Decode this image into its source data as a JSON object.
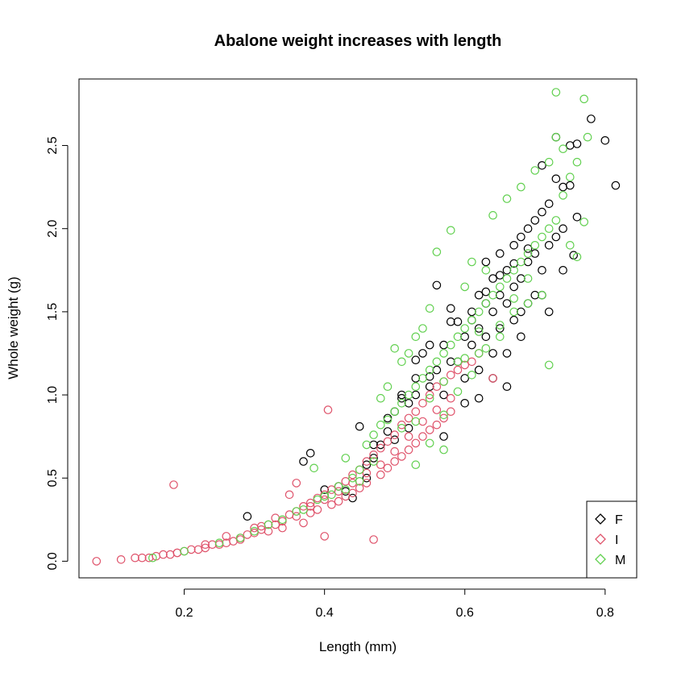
{
  "chart_data": {
    "type": "scatter",
    "title": "Abalone weight increases with length",
    "xlabel": "Length (mm)",
    "ylabel": "Whole weight (g)",
    "xlim": [
      0.05,
      0.845
    ],
    "ylim": [
      -0.1,
      2.9
    ],
    "x_ticks": [
      0.2,
      0.4,
      0.6,
      0.8
    ],
    "x_tick_labels": [
      "0.2",
      "0.4",
      "0.6",
      "0.8"
    ],
    "y_ticks": [
      0.0,
      0.5,
      1.0,
      1.5,
      2.0,
      2.5
    ],
    "y_tick_labels": [
      "0.0",
      "0.5",
      "1.0",
      "1.5",
      "2.0",
      "2.5"
    ],
    "grid": false,
    "legend_position": "bottom-right",
    "marker": "open-circle",
    "legend_marker": "open-diamond",
    "series": [
      {
        "name": "F",
        "color": "#000000",
        "points": [
          [
            0.29,
            0.27
          ],
          [
            0.37,
            0.6
          ],
          [
            0.38,
            0.65
          ],
          [
            0.4,
            0.43
          ],
          [
            0.42,
            0.45
          ],
          [
            0.45,
            0.81
          ],
          [
            0.46,
            0.58
          ],
          [
            0.47,
            0.62
          ],
          [
            0.48,
            0.7
          ],
          [
            0.49,
            0.78
          ],
          [
            0.5,
            0.73
          ],
          [
            0.5,
            0.9
          ],
          [
            0.51,
            1.0
          ],
          [
            0.52,
            0.95
          ],
          [
            0.53,
            1.1
          ],
          [
            0.53,
            1.21
          ],
          [
            0.54,
            1.25
          ],
          [
            0.55,
            1.3
          ],
          [
            0.55,
            1.05
          ],
          [
            0.56,
            1.66
          ],
          [
            0.56,
            1.15
          ],
          [
            0.57,
            1.3
          ],
          [
            0.57,
            1.0
          ],
          [
            0.58,
            1.44
          ],
          [
            0.58,
            1.52
          ],
          [
            0.59,
            1.44
          ],
          [
            0.59,
            1.2
          ],
          [
            0.6,
            1.35
          ],
          [
            0.6,
            1.1
          ],
          [
            0.61,
            1.5
          ],
          [
            0.61,
            1.3
          ],
          [
            0.62,
            1.6
          ],
          [
            0.62,
            1.4
          ],
          [
            0.62,
            1.15
          ],
          [
            0.63,
            1.8
          ],
          [
            0.63,
            1.55
          ],
          [
            0.63,
            1.35
          ],
          [
            0.64,
            1.7
          ],
          [
            0.64,
            1.5
          ],
          [
            0.64,
            1.25
          ],
          [
            0.65,
            1.85
          ],
          [
            0.65,
            1.6
          ],
          [
            0.65,
            1.4
          ],
          [
            0.66,
            1.75
          ],
          [
            0.66,
            1.55
          ],
          [
            0.66,
            1.05
          ],
          [
            0.67,
            1.9
          ],
          [
            0.67,
            1.65
          ],
          [
            0.67,
            1.45
          ],
          [
            0.68,
            1.95
          ],
          [
            0.68,
            1.7
          ],
          [
            0.68,
            1.5
          ],
          [
            0.69,
            2.0
          ],
          [
            0.69,
            1.8
          ],
          [
            0.69,
            1.55
          ],
          [
            0.7,
            2.05
          ],
          [
            0.7,
            1.85
          ],
          [
            0.7,
            1.6
          ],
          [
            0.71,
            2.38
          ],
          [
            0.71,
            2.1
          ],
          [
            0.71,
            1.75
          ],
          [
            0.72,
            2.15
          ],
          [
            0.72,
            1.9
          ],
          [
            0.72,
            1.5
          ],
          [
            0.73,
            2.55
          ],
          [
            0.73,
            2.3
          ],
          [
            0.73,
            1.95
          ],
          [
            0.74,
            2.25
          ],
          [
            0.74,
            2.0
          ],
          [
            0.75,
            2.5
          ],
          [
            0.75,
            2.26
          ],
          [
            0.76,
            2.51
          ],
          [
            0.76,
            2.07
          ],
          [
            0.78,
            2.66
          ],
          [
            0.8,
            2.53
          ],
          [
            0.815,
            2.26
          ],
          [
            0.44,
            0.38
          ],
          [
            0.46,
            0.5
          ],
          [
            0.52,
            0.8
          ],
          [
            0.57,
            0.75
          ],
          [
            0.6,
            0.95
          ],
          [
            0.62,
            0.98
          ],
          [
            0.64,
            1.1
          ],
          [
            0.66,
            1.25
          ],
          [
            0.68,
            1.35
          ],
          [
            0.71,
            1.6
          ],
          [
            0.74,
            1.75
          ],
          [
            0.755,
            1.84
          ],
          [
            0.43,
            0.42
          ],
          [
            0.47,
            0.7
          ],
          [
            0.49,
            0.86
          ],
          [
            0.51,
            0.98
          ],
          [
            0.53,
            1.0
          ],
          [
            0.55,
            1.11
          ],
          [
            0.58,
            1.2
          ],
          [
            0.61,
            1.45
          ],
          [
            0.63,
            1.62
          ],
          [
            0.65,
            1.72
          ],
          [
            0.67,
            1.79
          ],
          [
            0.69,
            1.88
          ]
        ]
      },
      {
        "name": "I",
        "color": "#DF536B",
        "points": [
          [
            0.075,
            0.0
          ],
          [
            0.11,
            0.01
          ],
          [
            0.13,
            0.02
          ],
          [
            0.14,
            0.02
          ],
          [
            0.15,
            0.02
          ],
          [
            0.16,
            0.03
          ],
          [
            0.17,
            0.04
          ],
          [
            0.18,
            0.04
          ],
          [
            0.185,
            0.46
          ],
          [
            0.19,
            0.05
          ],
          [
            0.2,
            0.06
          ],
          [
            0.21,
            0.07
          ],
          [
            0.22,
            0.07
          ],
          [
            0.23,
            0.08
          ],
          [
            0.24,
            0.1
          ],
          [
            0.25,
            0.1
          ],
          [
            0.26,
            0.15
          ],
          [
            0.27,
            0.12
          ],
          [
            0.28,
            0.14
          ],
          [
            0.29,
            0.16
          ],
          [
            0.3,
            0.17
          ],
          [
            0.3,
            0.2
          ],
          [
            0.31,
            0.21
          ],
          [
            0.32,
            0.22
          ],
          [
            0.32,
            0.18
          ],
          [
            0.33,
            0.26
          ],
          [
            0.34,
            0.24
          ],
          [
            0.34,
            0.2
          ],
          [
            0.35,
            0.28
          ],
          [
            0.35,
            0.4
          ],
          [
            0.36,
            0.3
          ],
          [
            0.36,
            0.47
          ],
          [
            0.37,
            0.33
          ],
          [
            0.37,
            0.23
          ],
          [
            0.38,
            0.35
          ],
          [
            0.38,
            0.29
          ],
          [
            0.39,
            0.38
          ],
          [
            0.39,
            0.31
          ],
          [
            0.4,
            0.4
          ],
          [
            0.4,
            0.15
          ],
          [
            0.405,
            0.91
          ],
          [
            0.41,
            0.43
          ],
          [
            0.41,
            0.34
          ],
          [
            0.42,
            0.45
          ],
          [
            0.42,
            0.36
          ],
          [
            0.43,
            0.48
          ],
          [
            0.43,
            0.39
          ],
          [
            0.44,
            0.52
          ],
          [
            0.44,
            0.41
          ],
          [
            0.45,
            0.55
          ],
          [
            0.45,
            0.44
          ],
          [
            0.46,
            0.6
          ],
          [
            0.46,
            0.47
          ],
          [
            0.47,
            0.64
          ],
          [
            0.47,
            0.13
          ],
          [
            0.48,
            0.68
          ],
          [
            0.48,
            0.52
          ],
          [
            0.49,
            0.72
          ],
          [
            0.49,
            0.56
          ],
          [
            0.5,
            0.76
          ],
          [
            0.5,
            0.6
          ],
          [
            0.51,
            0.82
          ],
          [
            0.51,
            0.63
          ],
          [
            0.52,
            0.86
          ],
          [
            0.52,
            0.67
          ],
          [
            0.53,
            0.9
          ],
          [
            0.53,
            0.71
          ],
          [
            0.54,
            0.95
          ],
          [
            0.54,
            0.75
          ],
          [
            0.55,
            1.0
          ],
          [
            0.55,
            0.79
          ],
          [
            0.56,
            1.05
          ],
          [
            0.56,
            0.82
          ],
          [
            0.57,
            1.08
          ],
          [
            0.57,
            0.86
          ],
          [
            0.58,
            1.12
          ],
          [
            0.58,
            0.9
          ],
          [
            0.59,
            1.15
          ],
          [
            0.6,
            1.18
          ],
          [
            0.61,
            1.2
          ],
          [
            0.62,
            1.25
          ],
          [
            0.64,
            1.1
          ],
          [
            0.19,
            0.05
          ],
          [
            0.23,
            0.1
          ],
          [
            0.26,
            0.11
          ],
          [
            0.28,
            0.13
          ],
          [
            0.31,
            0.19
          ],
          [
            0.33,
            0.22
          ],
          [
            0.36,
            0.27
          ],
          [
            0.38,
            0.33
          ],
          [
            0.4,
            0.37
          ],
          [
            0.42,
            0.42
          ],
          [
            0.44,
            0.47
          ],
          [
            0.46,
            0.53
          ],
          [
            0.48,
            0.58
          ],
          [
            0.5,
            0.66
          ],
          [
            0.52,
            0.75
          ],
          [
            0.54,
            0.84
          ],
          [
            0.56,
            0.91
          ],
          [
            0.58,
            0.98
          ]
        ]
      },
      {
        "name": "M",
        "color": "#61D04F",
        "points": [
          [
            0.155,
            0.02
          ],
          [
            0.2,
            0.06
          ],
          [
            0.25,
            0.11
          ],
          [
            0.28,
            0.14
          ],
          [
            0.3,
            0.18
          ],
          [
            0.32,
            0.22
          ],
          [
            0.34,
            0.25
          ],
          [
            0.36,
            0.3
          ],
          [
            0.37,
            0.31
          ],
          [
            0.385,
            0.56
          ],
          [
            0.39,
            0.37
          ],
          [
            0.4,
            0.39
          ],
          [
            0.42,
            0.45
          ],
          [
            0.43,
            0.62
          ],
          [
            0.44,
            0.5
          ],
          [
            0.45,
            0.55
          ],
          [
            0.46,
            0.7
          ],
          [
            0.47,
            0.76
          ],
          [
            0.48,
            0.82
          ],
          [
            0.48,
            0.98
          ],
          [
            0.49,
            0.85
          ],
          [
            0.49,
            1.05
          ],
          [
            0.5,
            0.9
          ],
          [
            0.5,
            1.28
          ],
          [
            0.51,
            0.95
          ],
          [
            0.51,
            1.2
          ],
          [
            0.52,
            1.0
          ],
          [
            0.52,
            1.25
          ],
          [
            0.53,
            1.05
          ],
          [
            0.53,
            1.35
          ],
          [
            0.54,
            1.1
          ],
          [
            0.54,
            1.4
          ],
          [
            0.55,
            1.15
          ],
          [
            0.55,
            1.52
          ],
          [
            0.56,
            1.2
          ],
          [
            0.56,
            1.86
          ],
          [
            0.57,
            1.25
          ],
          [
            0.57,
            0.67
          ],
          [
            0.58,
            1.3
          ],
          [
            0.58,
            1.99
          ],
          [
            0.59,
            1.35
          ],
          [
            0.59,
            1.2
          ],
          [
            0.6,
            1.4
          ],
          [
            0.6,
            1.65
          ],
          [
            0.61,
            1.45
          ],
          [
            0.61,
            1.8
          ],
          [
            0.62,
            1.5
          ],
          [
            0.62,
            1.25
          ],
          [
            0.63,
            1.55
          ],
          [
            0.63,
            1.75
          ],
          [
            0.64,
            1.6
          ],
          [
            0.64,
            2.08
          ],
          [
            0.65,
            1.65
          ],
          [
            0.65,
            1.35
          ],
          [
            0.66,
            1.7
          ],
          [
            0.66,
            2.18
          ],
          [
            0.67,
            1.75
          ],
          [
            0.67,
            1.5
          ],
          [
            0.68,
            1.8
          ],
          [
            0.68,
            2.25
          ],
          [
            0.69,
            1.85
          ],
          [
            0.69,
            1.55
          ],
          [
            0.7,
            1.9
          ],
          [
            0.7,
            2.35
          ],
          [
            0.71,
            1.95
          ],
          [
            0.71,
            1.6
          ],
          [
            0.72,
            2.0
          ],
          [
            0.72,
            2.4
          ],
          [
            0.73,
            2.82
          ],
          [
            0.73,
            2.55
          ],
          [
            0.73,
            2.05
          ],
          [
            0.74,
            2.48
          ],
          [
            0.74,
            2.2
          ],
          [
            0.75,
            2.31
          ],
          [
            0.75,
            1.9
          ],
          [
            0.76,
            2.4
          ],
          [
            0.76,
            1.83
          ],
          [
            0.77,
            2.78
          ],
          [
            0.77,
            2.04
          ],
          [
            0.775,
            2.55
          ],
          [
            0.72,
            1.18
          ],
          [
            0.53,
            0.58
          ],
          [
            0.55,
            0.71
          ],
          [
            0.57,
            0.88
          ],
          [
            0.59,
            1.02
          ],
          [
            0.61,
            1.12
          ],
          [
            0.63,
            1.28
          ],
          [
            0.65,
            1.42
          ],
          [
            0.67,
            1.58
          ],
          [
            0.69,
            1.7
          ],
          [
            0.47,
            0.6
          ],
          [
            0.45,
            0.48
          ],
          [
            0.43,
            0.43
          ],
          [
            0.41,
            0.4
          ],
          [
            0.51,
            0.8
          ],
          [
            0.53,
            0.84
          ],
          [
            0.55,
            0.98
          ],
          [
            0.57,
            1.08
          ],
          [
            0.6,
            1.22
          ],
          [
            0.62,
            1.38
          ]
        ]
      }
    ]
  }
}
